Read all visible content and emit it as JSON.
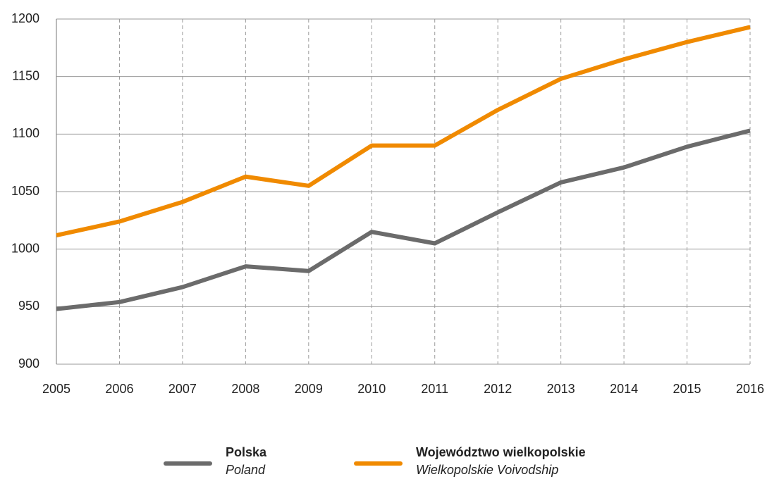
{
  "chart_data": {
    "type": "line",
    "x": [
      2005,
      2006,
      2007,
      2008,
      2009,
      2010,
      2011,
      2012,
      2013,
      2014,
      2015,
      2016
    ],
    "xlim": [
      2005,
      2016
    ],
    "xticks": [
      2005,
      2006,
      2007,
      2008,
      2009,
      2010,
      2011,
      2012,
      2013,
      2014,
      2015,
      2016
    ],
    "ylim": [
      900,
      1200
    ],
    "yticks": [
      900,
      950,
      1000,
      1050,
      1100,
      1150,
      1200
    ],
    "grid": true,
    "legend": "bottom",
    "series": [
      {
        "name": "Polska",
        "name_translation": "Poland",
        "color": "#6b6b6b",
        "values": [
          948,
          954,
          967,
          985,
          981,
          1015,
          1005,
          1032,
          1058,
          1071,
          1089,
          1103
        ]
      },
      {
        "name": "Województwo wielkopolskie",
        "name_translation": "Wielkopolskie Voivodship",
        "color": "#f08a00",
        "values": [
          1012,
          1024,
          1041,
          1063,
          1055,
          1090,
          1090,
          1121,
          1148,
          1165,
          1180,
          1193
        ]
      }
    ]
  }
}
